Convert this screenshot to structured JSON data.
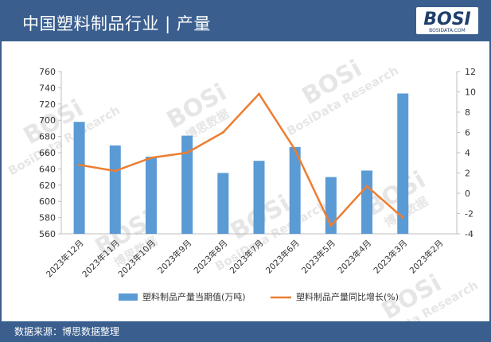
{
  "header": {
    "title": "中国塑料制品行业 | 产量"
  },
  "logo": {
    "brand": "BOSI",
    "subtext": "BOSIDATA.COM"
  },
  "footer": {
    "source": "数据来源：博思数据整理"
  },
  "watermark": {
    "brand": "BOSi",
    "cn": "博思数据",
    "en": "BosiData Research"
  },
  "colors": {
    "bar": "#5b9bd5",
    "line": "#ed7d31",
    "header": "#3a5f8f"
  },
  "chart_data": {
    "type": "bar",
    "categories": [
      "2023年12月",
      "2023年11月",
      "2023年10月",
      "2023年9月",
      "2023年8月",
      "2023年7月",
      "2023年6月",
      "2023年5月",
      "2023年4月",
      "2023年3月",
      "2023年2月"
    ],
    "series": [
      {
        "name": "塑料制品产量当期值(万吨)",
        "type": "bar",
        "axis": "left",
        "values": [
          698,
          669,
          655,
          681,
          635,
          650,
          667,
          630,
          638,
          733,
          null
        ]
      },
      {
        "name": "塑料制品产量同比增长(%)",
        "type": "line",
        "axis": "right",
        "values": [
          2.8,
          2.2,
          3.5,
          4.0,
          6.0,
          9.8,
          4.3,
          -3.2,
          0.7,
          -2.4,
          null
        ]
      }
    ],
    "y_left": {
      "min": 560,
      "max": 760,
      "ticks": [
        560,
        580,
        600,
        620,
        640,
        660,
        680,
        700,
        720,
        740,
        760
      ]
    },
    "y_right": {
      "min": -4,
      "max": 12,
      "ticks": [
        -4,
        -2,
        0,
        2,
        4,
        6,
        8,
        10,
        12
      ]
    },
    "grid": false,
    "legend_position": "bottom"
  }
}
